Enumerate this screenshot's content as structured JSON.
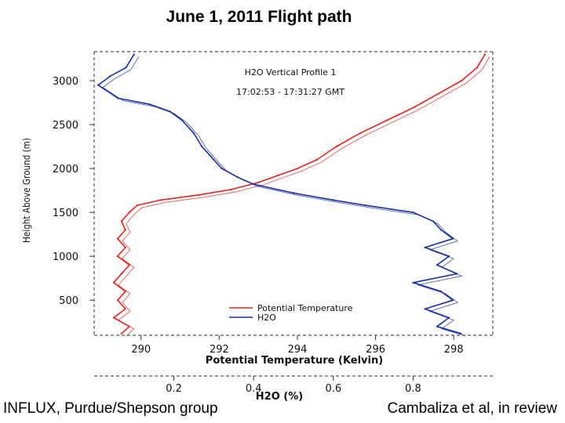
{
  "page": {
    "title": "June 1, 2011 Flight path",
    "footer_left": "INFLUX, Purdue/Shepson group",
    "footer_right": "Cambaliza et al, in review"
  },
  "chart_data": {
    "type": "line",
    "title": "H2O Vertical Profile 1",
    "subtitle": "17:02:53 - 17:31:27 GMT",
    "ylabel": "Height Above Ground (m)",
    "x_bottom_label": "Potential Temperature (Kelvin)",
    "x_top_label": "H2O (%)",
    "x_bottom_lim": [
      288.8,
      299.0
    ],
    "x_top_lim": [
      0.0,
      1.0
    ],
    "ylim": [
      100,
      3330
    ],
    "x_bottom_ticks": [
      "290",
      "292",
      "294",
      "296",
      "298"
    ],
    "x_top_ticks": [
      "0.2",
      "0.4",
      "0.6",
      "0.8"
    ],
    "y_ticks": [
      "500",
      "1000",
      "1500",
      "2000",
      "2500",
      "3000"
    ],
    "grid": false,
    "legend_position": "bottom-center",
    "colors": {
      "potential_temperature": "#e8221e",
      "h2o": "#1a2fa0"
    },
    "series": [
      {
        "name": "Potential Temperature",
        "axis": "bottom",
        "points": [
          [
            289.5,
            120
          ],
          [
            289.7,
            200
          ],
          [
            289.3,
            300
          ],
          [
            289.6,
            400
          ],
          [
            289.4,
            500
          ],
          [
            289.6,
            600
          ],
          [
            289.3,
            700
          ],
          [
            289.5,
            800
          ],
          [
            289.7,
            900
          ],
          [
            289.4,
            1000
          ],
          [
            289.6,
            1100
          ],
          [
            289.4,
            1200
          ],
          [
            289.6,
            1300
          ],
          [
            289.5,
            1400
          ],
          [
            289.7,
            1500
          ],
          [
            289.9,
            1580
          ],
          [
            290.5,
            1640
          ],
          [
            291.5,
            1700
          ],
          [
            292.3,
            1760
          ],
          [
            293.0,
            1840
          ],
          [
            293.5,
            1920
          ],
          [
            294.0,
            2000
          ],
          [
            294.5,
            2100
          ],
          [
            295.0,
            2250
          ],
          [
            295.6,
            2400
          ],
          [
            296.3,
            2550
          ],
          [
            297.0,
            2700
          ],
          [
            297.6,
            2850
          ],
          [
            298.2,
            3000
          ],
          [
            298.6,
            3150
          ],
          [
            298.8,
            3300
          ]
        ]
      },
      {
        "name": "H2O",
        "axis": "top",
        "points": [
          [
            0.92,
            120
          ],
          [
            0.86,
            200
          ],
          [
            0.89,
            300
          ],
          [
            0.83,
            400
          ],
          [
            0.9,
            500
          ],
          [
            0.87,
            600
          ],
          [
            0.8,
            700
          ],
          [
            0.91,
            800
          ],
          [
            0.86,
            900
          ],
          [
            0.89,
            1000
          ],
          [
            0.83,
            1100
          ],
          [
            0.9,
            1200
          ],
          [
            0.87,
            1300
          ],
          [
            0.85,
            1400
          ],
          [
            0.8,
            1500
          ],
          [
            0.68,
            1580
          ],
          [
            0.6,
            1640
          ],
          [
            0.5,
            1720
          ],
          [
            0.4,
            1820
          ],
          [
            0.36,
            1900
          ],
          [
            0.32,
            2000
          ],
          [
            0.3,
            2100
          ],
          [
            0.27,
            2250
          ],
          [
            0.25,
            2400
          ],
          [
            0.22,
            2550
          ],
          [
            0.19,
            2650
          ],
          [
            0.14,
            2730
          ],
          [
            0.06,
            2800
          ],
          [
            0.01,
            2950
          ],
          [
            0.04,
            3050
          ],
          [
            0.08,
            3150
          ],
          [
            0.1,
            3300
          ]
        ]
      }
    ]
  }
}
